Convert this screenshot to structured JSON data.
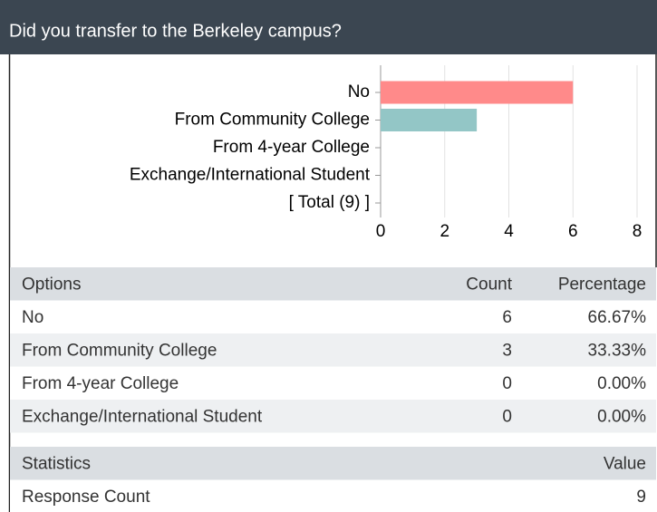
{
  "header": {
    "title": "Did you transfer to the Berkeley campus?"
  },
  "chart_data": {
    "type": "bar",
    "orientation": "horizontal",
    "categories": [
      "No",
      "From Community College",
      "From 4-year College",
      "Exchange/International Student",
      "[ Total (9) ]"
    ],
    "values": [
      6,
      3,
      0,
      0,
      null
    ],
    "colors": [
      "#ff8a8a",
      "#93c6c6",
      "#93c6c6",
      "#93c6c6",
      "#93c6c6"
    ],
    "xlim": [
      0,
      8
    ],
    "xticks": [
      0,
      2,
      4,
      6,
      8
    ],
    "grid": true
  },
  "table": {
    "header": [
      "Options",
      "Count",
      "Percentage"
    ],
    "rows": [
      [
        "No",
        6,
        "66.67%"
      ],
      [
        "From Community College",
        3,
        "33.33%"
      ],
      [
        "From 4-year College",
        0,
        "0.00%"
      ],
      [
        "Exchange/International Student",
        0,
        "0.00%"
      ]
    ]
  },
  "statistics": {
    "header": [
      "Statistics",
      "Value"
    ],
    "rows": [
      [
        "Response Count",
        9
      ]
    ]
  }
}
